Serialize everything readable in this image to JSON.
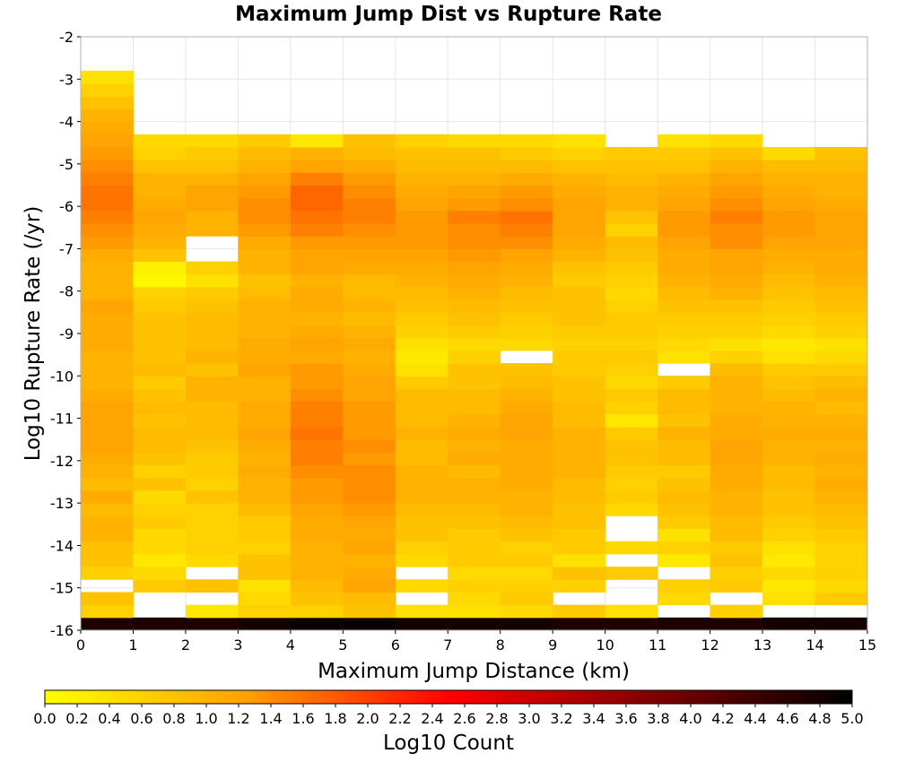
{
  "chart_data": {
    "type": "heatmap",
    "title": "Maximum Jump Dist vs Rupture Rate",
    "xlabel": "Maximum Jump Distance (km)",
    "ylabel": "Log10 Rupture Rate (/yr)",
    "xlim": [
      0,
      15
    ],
    "ylim": [
      -16,
      -2
    ],
    "x_ticks": [
      "0",
      "1",
      "2",
      "3",
      "4",
      "5",
      "6",
      "7",
      "8",
      "9",
      "10",
      "11",
      "12",
      "13",
      "14",
      "15"
    ],
    "y_ticks": [
      "-2",
      "-3",
      "-4",
      "-5",
      "-6",
      "-7",
      "-8",
      "-9",
      "-10",
      "-11",
      "-12",
      "-13",
      "-14",
      "-15",
      "-16"
    ],
    "grid": true,
    "x_bin_width": 1,
    "y_bin_height": 0.3,
    "y_bin_start": -16,
    "colorbar": {
      "label": "Log10 Count",
      "range": [
        0,
        5
      ],
      "ticks": [
        "0.0",
        "0.2",
        "0.4",
        "0.6",
        "0.8",
        "1.0",
        "1.2",
        "1.4",
        "1.6",
        "1.8",
        "2.0",
        "2.2",
        "2.4",
        "2.6",
        "2.8",
        "3.0",
        "3.2",
        "3.4",
        "3.6",
        "3.8",
        "4.0",
        "4.2",
        "4.4",
        "4.6",
        "4.8",
        "5.0"
      ],
      "colors": [
        "#ffff00",
        "#ffa000",
        "#ff0000",
        "#800000",
        "#000000"
      ],
      "placement": "bottom"
    },
    "columns": [
      {
        "x": 0.5,
        "values": [
          4.7,
          0.6,
          0.8,
          null,
          0.6,
          0.8,
          0.8,
          1.0,
          1.0,
          0.9,
          1.1,
          0.9,
          1.0,
          1.1,
          1.2,
          1.2,
          1.2,
          1.2,
          1.1,
          1.0,
          1.0,
          1.0,
          1.1,
          1.1,
          1.1,
          1.2,
          1.0,
          1.0,
          1.0,
          1.1,
          1.3,
          1.4,
          1.5,
          1.6,
          1.6,
          1.5,
          1.4,
          1.3,
          1.2,
          1.1,
          1.0,
          0.8,
          0.6,
          0.4
        ]
      },
      {
        "x": 1.5,
        "values": [
          4.7,
          null,
          null,
          0.7,
          0.5,
          0.3,
          0.5,
          0.5,
          0.7,
          0.6,
          0.5,
          0.8,
          0.6,
          0.8,
          0.9,
          0.9,
          0.8,
          0.9,
          0.8,
          0.7,
          0.9,
          0.8,
          0.8,
          0.8,
          0.8,
          0.7,
          0.6,
          0.1,
          0.2,
          0.8,
          1.0,
          1.1,
          1.2,
          1.1,
          1.0,
          1.0,
          0.8,
          0.6,
          0.5,
          null,
          null,
          null,
          null,
          null
        ]
      },
      {
        "x": 2.5,
        "values": [
          4.7,
          0.3,
          null,
          0.8,
          null,
          0.5,
          0.6,
          0.6,
          0.6,
          0.6,
          0.8,
          0.6,
          0.7,
          0.7,
          0.8,
          0.9,
          0.9,
          0.9,
          1.0,
          1.0,
          0.8,
          1.0,
          0.9,
          0.9,
          0.9,
          0.8,
          0.7,
          0.4,
          0.6,
          null,
          null,
          1.0,
          1.0,
          1.2,
          1.2,
          1.0,
          0.8,
          0.7,
          0.5,
          null,
          null,
          null,
          null,
          null
        ]
      },
      {
        "x": 3.5,
        "values": [
          4.8,
          0.6,
          0.5,
          0.4,
          0.8,
          0.8,
          0.6,
          0.7,
          0.7,
          0.9,
          1.0,
          1.0,
          1.1,
          1.0,
          1.1,
          1.2,
          1.1,
          1.1,
          1.0,
          1.0,
          1.2,
          1.1,
          1.1,
          1.0,
          1.0,
          1.0,
          0.9,
          0.8,
          1.0,
          1.0,
          1.1,
          1.3,
          1.4,
          1.4,
          1.3,
          1.2,
          1.0,
          0.9,
          0.7,
          null,
          null,
          null,
          null,
          null
        ]
      },
      {
        "x": 4.5,
        "values": [
          4.9,
          0.6,
          0.8,
          0.9,
          1.0,
          1.0,
          1.0,
          1.1,
          1.1,
          1.2,
          1.3,
          1.3,
          1.4,
          1.5,
          1.5,
          1.6,
          1.5,
          1.5,
          1.4,
          1.3,
          1.3,
          1.1,
          1.2,
          1.1,
          1.0,
          1.1,
          1.1,
          1.0,
          1.2,
          1.2,
          1.3,
          1.5,
          1.6,
          1.7,
          1.7,
          1.5,
          1.2,
          1.0,
          0.3,
          null,
          null,
          null,
          null,
          null
        ]
      },
      {
        "x": 5.5,
        "values": [
          4.9,
          0.8,
          0.9,
          1.2,
          1.1,
          1.0,
          1.2,
          1.1,
          1.2,
          1.3,
          1.4,
          1.4,
          1.4,
          1.3,
          1.4,
          1.3,
          1.3,
          1.3,
          1.2,
          1.2,
          1.1,
          1.0,
          1.1,
          1.0,
          0.9,
          1.0,
          0.9,
          0.9,
          1.1,
          1.2,
          1.3,
          1.4,
          1.5,
          1.5,
          1.4,
          1.3,
          1.1,
          0.9,
          0.8,
          null,
          null,
          null,
          null,
          null
        ]
      },
      {
        "x": 6.5,
        "values": [
          4.8,
          0.4,
          null,
          0.5,
          null,
          0.5,
          0.6,
          0.8,
          0.8,
          0.9,
          1.0,
          1.0,
          1.0,
          0.9,
          0.9,
          1.0,
          0.9,
          0.9,
          0.9,
          0.7,
          0.4,
          0.3,
          0.4,
          0.6,
          0.7,
          0.8,
          0.9,
          1.0,
          1.1,
          1.2,
          1.3,
          1.3,
          1.3,
          1.2,
          1.1,
          1.0,
          0.9,
          0.8,
          0.6,
          null,
          null,
          null,
          null,
          null
        ]
      },
      {
        "x": 7.5,
        "values": [
          4.8,
          0.4,
          0.5,
          0.6,
          0.5,
          0.7,
          0.7,
          0.7,
          0.8,
          0.9,
          1.0,
          1.0,
          0.9,
          1.1,
          1.0,
          1.1,
          1.0,
          0.9,
          0.9,
          0.8,
          0.8,
          0.6,
          0.5,
          0.7,
          0.8,
          0.9,
          1.0,
          1.1,
          1.2,
          1.3,
          1.4,
          1.4,
          1.5,
          1.3,
          1.2,
          1.0,
          0.9,
          0.8,
          0.5,
          null,
          null,
          null,
          null,
          null
        ]
      },
      {
        "x": 8.5,
        "values": [
          4.8,
          0.5,
          0.7,
          0.6,
          0.5,
          0.7,
          0.6,
          0.8,
          0.9,
          1.0,
          1.0,
          1.1,
          1.1,
          1.1,
          1.1,
          1.2,
          1.2,
          1.1,
          1.0,
          0.9,
          0.8,
          null,
          0.5,
          0.6,
          0.7,
          0.8,
          0.9,
          1.0,
          1.1,
          1.2,
          1.4,
          1.5,
          1.6,
          1.4,
          1.3,
          1.1,
          0.9,
          0.7,
          0.5,
          null,
          null,
          null,
          null,
          null
        ]
      },
      {
        "x": 9.5,
        "values": [
          4.7,
          0.7,
          null,
          0.6,
          0.8,
          0.4,
          0.7,
          0.7,
          0.8,
          0.8,
          0.9,
          0.9,
          1.0,
          1.0,
          1.0,
          1.0,
          0.9,
          0.9,
          0.8,
          0.8,
          0.7,
          0.7,
          0.6,
          0.7,
          0.8,
          0.8,
          0.8,
          0.7,
          0.8,
          1.0,
          1.1,
          1.2,
          1.2,
          1.2,
          1.1,
          1.0,
          0.8,
          0.6,
          0.4,
          null,
          null,
          null,
          null,
          null
        ]
      },
      {
        "x": 10.5,
        "values": [
          4.7,
          0.4,
          null,
          null,
          0.7,
          null,
          0.5,
          null,
          null,
          0.5,
          0.7,
          0.6,
          0.7,
          0.8,
          0.8,
          0.7,
          0.3,
          0.6,
          0.7,
          0.5,
          0.6,
          0.7,
          0.6,
          0.7,
          0.7,
          0.6,
          0.5,
          0.6,
          0.7,
          0.8,
          0.9,
          0.6,
          0.8,
          1.0,
          1.0,
          0.9,
          0.8,
          0.7,
          null,
          null,
          null,
          null,
          null,
          null
        ]
      },
      {
        "x": 11.5,
        "values": [
          4.7,
          null,
          0.5,
          0.6,
          null,
          0.3,
          0.6,
          0.4,
          0.7,
          0.8,
          0.9,
          0.8,
          0.7,
          0.9,
          0.9,
          1.0,
          0.8,
          0.9,
          0.9,
          0.7,
          null,
          0.4,
          0.5,
          0.6,
          0.7,
          0.8,
          0.9,
          1.0,
          1.1,
          1.1,
          1.2,
          1.3,
          1.3,
          1.2,
          1.1,
          1.0,
          0.8,
          0.7,
          0.4,
          null,
          null,
          null,
          null,
          null
        ]
      },
      {
        "x": 12.5,
        "values": [
          4.7,
          0.6,
          null,
          0.7,
          0.6,
          0.8,
          0.7,
          0.9,
          0.9,
          1.0,
          1.0,
          1.1,
          1.1,
          1.2,
          1.2,
          1.1,
          1.1,
          1.0,
          1.0,
          1.0,
          0.9,
          0.6,
          0.4,
          0.6,
          0.7,
          0.8,
          1.0,
          1.1,
          1.2,
          1.2,
          1.4,
          1.4,
          1.5,
          1.4,
          1.3,
          1.2,
          1.0,
          0.8,
          0.5,
          null,
          null,
          null,
          null,
          null
        ]
      },
      {
        "x": 13.5,
        "values": [
          4.8,
          null,
          0.4,
          0.3,
          0.5,
          0.3,
          0.4,
          0.6,
          0.7,
          0.8,
          0.8,
          0.9,
          0.9,
          1.0,
          1.0,
          1.1,
          1.0,
          1.0,
          0.9,
          0.8,
          0.7,
          0.4,
          0.3,
          0.5,
          0.6,
          0.7,
          0.8,
          0.9,
          1.0,
          1.1,
          1.2,
          1.3,
          1.3,
          1.2,
          1.1,
          1.0,
          0.9,
          0.5,
          null,
          null,
          null,
          null,
          null,
          null
        ]
      },
      {
        "x": 14.5,
        "values": [
          4.8,
          null,
          0.7,
          0.5,
          0.6,
          0.6,
          0.6,
          0.7,
          0.8,
          0.9,
          1.0,
          1.1,
          1.0,
          1.1,
          1.0,
          1.1,
          1.0,
          0.9,
          1.0,
          0.9,
          0.7,
          0.5,
          0.4,
          0.6,
          0.7,
          0.8,
          0.9,
          1.0,
          1.1,
          1.1,
          1.2,
          1.2,
          1.2,
          1.1,
          1.0,
          1.0,
          0.9,
          0.8,
          null,
          null,
          null,
          null,
          null,
          null
        ]
      }
    ]
  }
}
